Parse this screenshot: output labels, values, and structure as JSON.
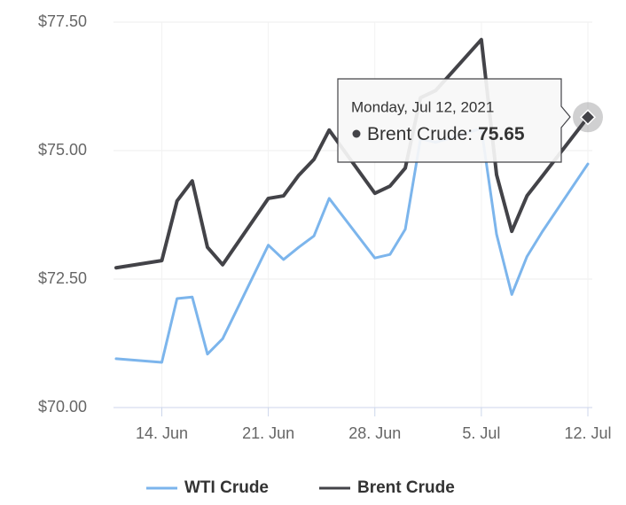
{
  "chart_data": {
    "type": "line",
    "x": [
      "06-11",
      "06-14",
      "06-15",
      "06-16",
      "06-17",
      "06-18",
      "06-21",
      "06-22",
      "06-23",
      "06-24",
      "06-25",
      "06-28",
      "06-29",
      "06-30",
      "07-01",
      "07-02",
      "07-05",
      "07-06",
      "07-07",
      "07-08",
      "07-09",
      "07-12"
    ],
    "series": [
      {
        "name": "WTI Crude",
        "color": "#7cb5ec",
        "values": [
          70.95,
          70.88,
          72.12,
          72.15,
          71.04,
          71.34,
          73.16,
          72.88,
          73.12,
          73.34,
          74.07,
          72.91,
          72.98,
          73.47,
          75.23,
          75.16,
          75.43,
          73.37,
          72.2,
          72.94,
          73.42,
          74.74
        ]
      },
      {
        "name": "Brent Crude",
        "color": "#434348",
        "values": [
          72.72,
          72.86,
          74.02,
          74.41,
          73.12,
          72.78,
          74.07,
          74.12,
          74.52,
          74.83,
          75.4,
          74.17,
          74.31,
          74.66,
          76.03,
          76.17,
          77.16,
          74.53,
          73.43,
          74.12,
          74.5,
          75.65
        ]
      }
    ],
    "ylim": [
      70,
      77.5
    ],
    "yticks": [
      {
        "value": 70,
        "label": "$70.00"
      },
      {
        "value": 72.5,
        "label": "$72.50"
      },
      {
        "value": 75,
        "label": "$75.00"
      },
      {
        "value": 77.5,
        "label": "$77.50"
      }
    ],
    "xlim": [
      "06-11",
      "07-12"
    ],
    "xticks": [
      {
        "value": "06-14",
        "label": "14. Jun"
      },
      {
        "value": "06-21",
        "label": "21. Jun"
      },
      {
        "value": "06-28",
        "label": "28. Jun"
      },
      {
        "value": "07-05",
        "label": "5. Jul"
      },
      {
        "value": "07-12",
        "label": "12. Jul"
      }
    ],
    "grid": true,
    "tooltip": {
      "date": "Monday, Jul 12, 2021",
      "label": "Brent Crude:",
      "series": 1,
      "index": 21
    }
  }
}
